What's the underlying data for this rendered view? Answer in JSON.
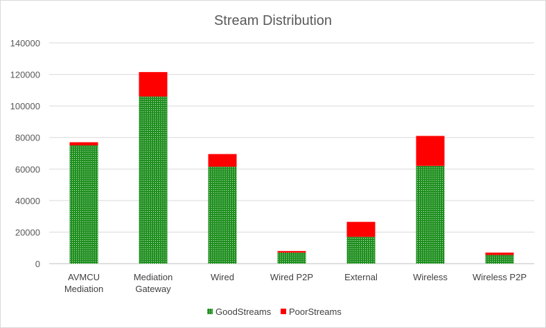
{
  "chart_data": {
    "type": "bar",
    "stacked": true,
    "title": "Stream Distribution",
    "xlabel": "",
    "ylabel": "",
    "ylim": [
      0,
      140000
    ],
    "yticks": [
      "0",
      "20000",
      "40000",
      "60000",
      "80000",
      "100000",
      "120000",
      "140000"
    ],
    "grid": true,
    "legend_position": "bottom",
    "categories": [
      [
        "AVMCU",
        "Mediation"
      ],
      [
        "Mediation",
        "Gateway"
      ],
      [
        "Wired"
      ],
      [
        "Wired P2P"
      ],
      [
        "External"
      ],
      [
        "Wireless"
      ],
      [
        "Wireless P2P"
      ]
    ],
    "series": [
      {
        "name": "GoodStreams",
        "color": "#1f8f1f",
        "pattern": "dotted",
        "values": [
          75000,
          106000,
          61500,
          7000,
          17000,
          62000,
          5500
        ]
      },
      {
        "name": "PoorStreams",
        "color": "#ff0000",
        "values": [
          2000,
          15500,
          8000,
          1000,
          9500,
          19000,
          1500
        ]
      }
    ]
  }
}
